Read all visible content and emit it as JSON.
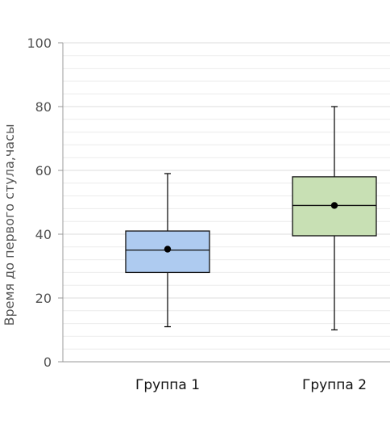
{
  "chart_data": {
    "type": "box",
    "title": "",
    "xlabel": "",
    "ylabel": "Время до первого стула,часы",
    "ylim": [
      0,
      100
    ],
    "yticks": [
      0,
      20,
      40,
      60,
      80,
      100
    ],
    "minor_grid_step": 4,
    "grid": true,
    "categories": [
      "Группа 1",
      "Группа 2"
    ],
    "series": [
      {
        "category": "Группа 1",
        "min": 11,
        "q1": 28,
        "median": 35,
        "mean": 35.3,
        "q3": 41,
        "max": 59,
        "color": "#aecbf0"
      },
      {
        "category": "Группа 2",
        "min": 10,
        "q1": 39.5,
        "median": 49,
        "mean": 49,
        "q3": 58,
        "max": 80,
        "color": "#c8e0b4"
      }
    ]
  }
}
